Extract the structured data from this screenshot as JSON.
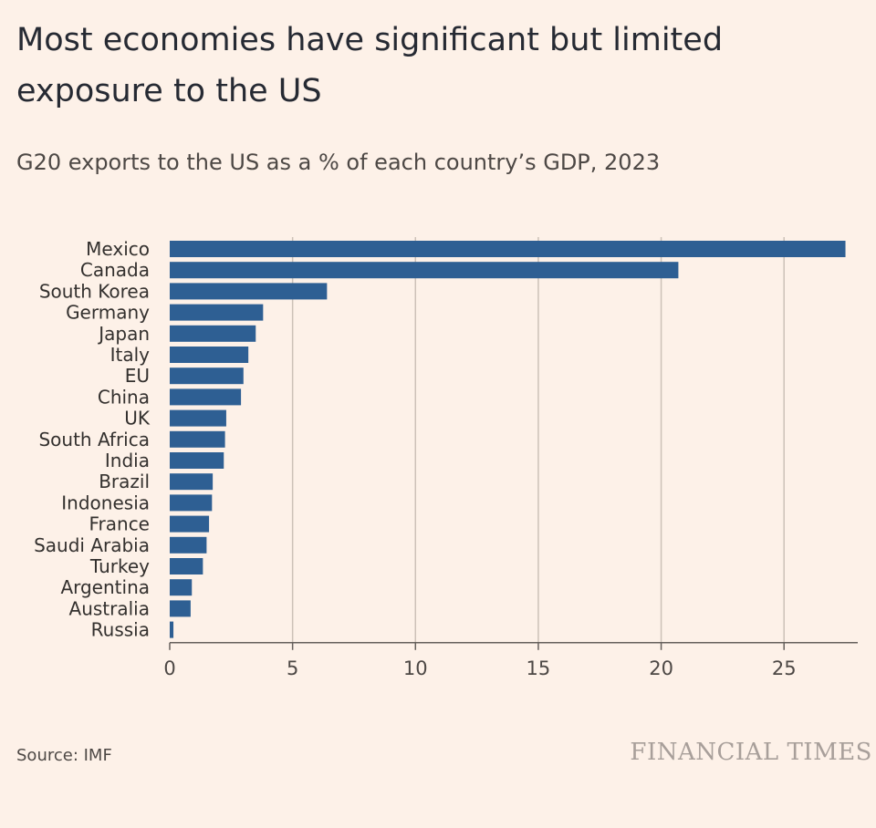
{
  "header": {
    "title": "Most economies have significant but limited exposure to the US",
    "subtitle": "G20 exports to the US as a % of each country’s GDP, 2023"
  },
  "footer": {
    "source": "Source: IMF",
    "brand": "FINANCIAL TIMES"
  },
  "colors": {
    "background": "#fdf1e8",
    "bar": "#2e5f93",
    "grid": "#ccc1b7",
    "axis": "#66605c"
  },
  "chart_data": {
    "type": "bar",
    "orientation": "horizontal",
    "title": "Most economies have significant but limited exposure to the US",
    "subtitle": "G20 exports to the US as a % of each country’s GDP, 2023",
    "xlabel": "",
    "ylabel": "",
    "xlim": [
      0,
      28
    ],
    "xticks": [
      0,
      5,
      10,
      15,
      20,
      25
    ],
    "grid": true,
    "categories": [
      "Mexico",
      "Canada",
      "South Korea",
      "Germany",
      "Japan",
      "Italy",
      "EU",
      "China",
      "UK",
      "South Africa",
      "India",
      "Brazil",
      "Indonesia",
      "France",
      "Saudi Arabia",
      "Turkey",
      "Argentina",
      "Australia",
      "Russia"
    ],
    "values": [
      27.5,
      20.7,
      6.4,
      3.8,
      3.5,
      3.2,
      3.0,
      2.9,
      2.3,
      2.25,
      2.2,
      1.75,
      1.72,
      1.6,
      1.5,
      1.35,
      0.9,
      0.85,
      0.15
    ]
  }
}
